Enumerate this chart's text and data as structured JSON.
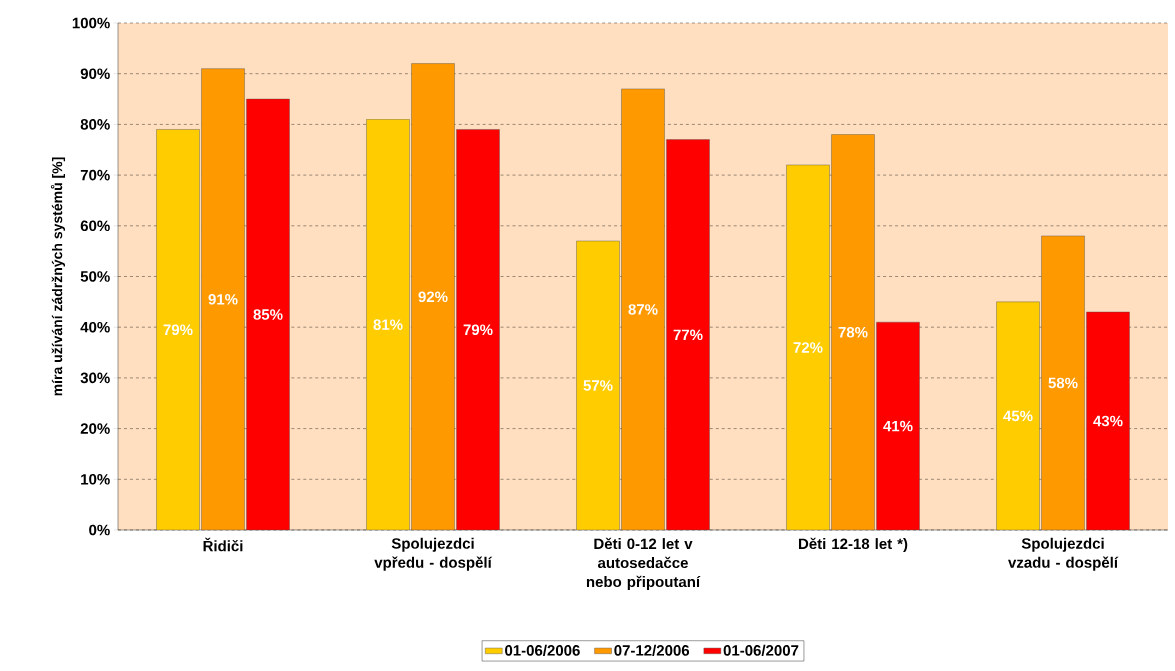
{
  "chart_data": {
    "type": "bar",
    "ylabel": "míra užívání zádržných systémů [%]",
    "categories": [
      "Řidiči",
      "Spolujezdci vpředu - dospělí",
      "Děti 0-12 let v autosedačce nebo připoutaní",
      "Děti 12-18 let *)",
      "Spolujezdci vzadu - dospělí"
    ],
    "series": [
      {
        "name": "01-06/2006",
        "color": "#ffcc00",
        "values": [
          79,
          81,
          57,
          72,
          45
        ],
        "value_labels": [
          "79%",
          "81%",
          "57%",
          "72%",
          "45%"
        ]
      },
      {
        "name": "07-12/2006",
        "color": "#ff9900",
        "values": [
          91,
          92,
          87,
          78,
          58
        ],
        "value_labels": [
          "91%",
          "92%",
          "87%",
          "78%",
          "58%"
        ]
      },
      {
        "name": "01-06/2007",
        "color": "#ff0000",
        "values": [
          85,
          79,
          77,
          41,
          43
        ],
        "value_labels": [
          "85%",
          "79%",
          "77%",
          "41%",
          "43%"
        ]
      }
    ],
    "ylim": [
      0,
      100
    ],
    "yticks": [
      {
        "value": 0,
        "label": "0%"
      },
      {
        "value": 10,
        "label": "10%"
      },
      {
        "value": 20,
        "label": "20%"
      },
      {
        "value": 30,
        "label": "30%"
      },
      {
        "value": 40,
        "label": "40%"
      },
      {
        "value": 50,
        "label": "50%"
      },
      {
        "value": 60,
        "label": "60%"
      },
      {
        "value": 70,
        "label": "70%"
      },
      {
        "value": 80,
        "label": "80%"
      },
      {
        "value": 90,
        "label": "90%"
      },
      {
        "value": 100,
        "label": "100%"
      }
    ],
    "grid": "y",
    "legend": "bottom"
  }
}
